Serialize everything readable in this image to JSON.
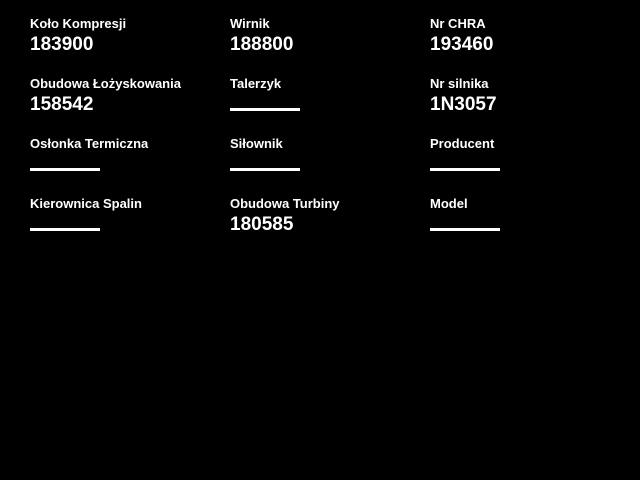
{
  "theme": {
    "background_color": "#000000",
    "text_color": "#ffffff"
  },
  "fields": [
    {
      "label": "Koło Kompresji",
      "value": "183900"
    },
    {
      "label": "Wirnik",
      "value": "188800"
    },
    {
      "label": "Nr CHRA",
      "value": "193460"
    },
    {
      "label": "Obudowa Łożyskowania",
      "value": "158542"
    },
    {
      "label": "Talerzyk",
      "value": ""
    },
    {
      "label": "Nr silnika",
      "value": "1N3057"
    },
    {
      "label": "Osłonka Termiczna",
      "value": ""
    },
    {
      "label": "Siłownik",
      "value": ""
    },
    {
      "label": "Producent",
      "value": ""
    },
    {
      "label": "Kierownica Spalin",
      "value": ""
    },
    {
      "label": "Obudowa Turbiny",
      "value": "180585"
    },
    {
      "label": "Model",
      "value": ""
    }
  ]
}
